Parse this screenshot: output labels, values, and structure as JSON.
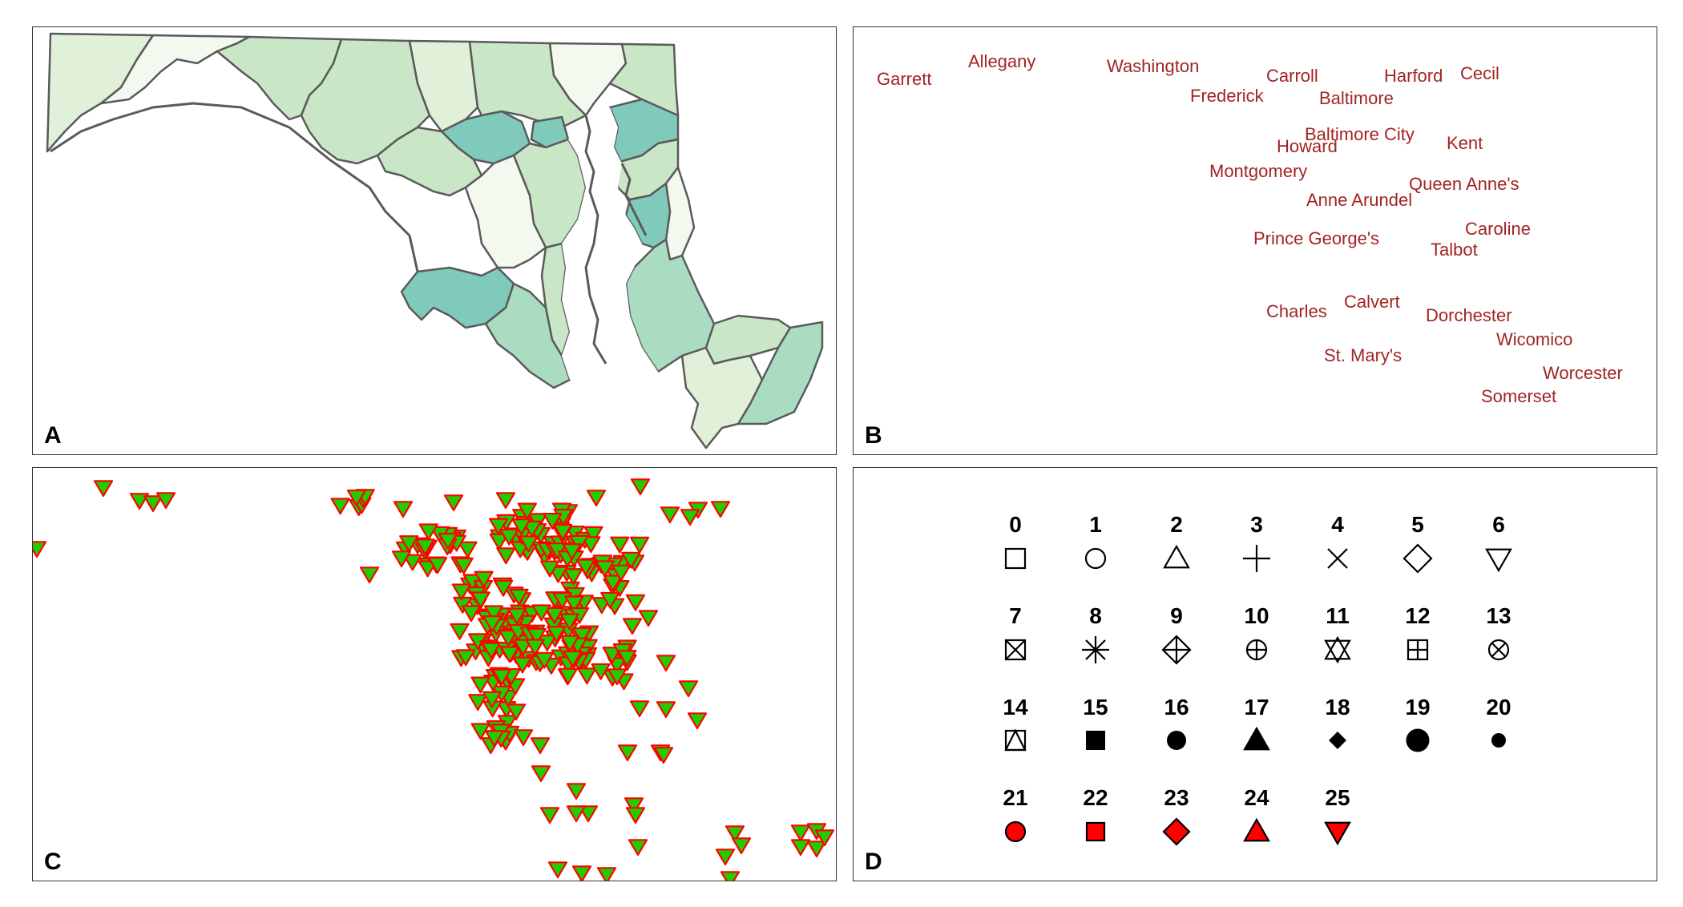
{
  "panels": {
    "a": {
      "letter": "A"
    },
    "b": {
      "letter": "B"
    },
    "c": {
      "letter": "C"
    },
    "d": {
      "letter": "D"
    }
  },
  "colors": {
    "panel_border": "#333333",
    "county_border": "#5a5a5a",
    "label_red": "#a32424",
    "marker_fill": "#22cc00",
    "marker_stroke": "#ff0000",
    "red_fill": "#ff0000",
    "fill_levels": [
      "#f3f9ee",
      "#e1f1d9",
      "#c9e7c7",
      "#a9dcc0",
      "#7fcabb"
    ]
  },
  "counties": [
    {
      "name": "Garrett"
    },
    {
      "name": "Allegany"
    },
    {
      "name": "Washington"
    },
    {
      "name": "Frederick"
    },
    {
      "name": "Carroll"
    },
    {
      "name": "Baltimore"
    },
    {
      "name": "Harford"
    },
    {
      "name": "Cecil"
    },
    {
      "name": "Baltimore City"
    },
    {
      "name": "Howard"
    },
    {
      "name": "Kent"
    },
    {
      "name": "Montgomery"
    },
    {
      "name": "Queen Anne's"
    },
    {
      "name": "Anne Arundel"
    },
    {
      "name": "Prince George's"
    },
    {
      "name": "Caroline"
    },
    {
      "name": "Talbot"
    },
    {
      "name": "Charles"
    },
    {
      "name": "Calvert"
    },
    {
      "name": "Dorchester"
    },
    {
      "name": "St. Mary's"
    },
    {
      "name": "Wicomico"
    },
    {
      "name": "Worcester"
    },
    {
      "name": "Somerset"
    }
  ],
  "pch_symbols": [
    {
      "number": "0",
      "shape": "square-open"
    },
    {
      "number": "1",
      "shape": "circle-open"
    },
    {
      "number": "2",
      "shape": "triangle-open"
    },
    {
      "number": "3",
      "shape": "plus"
    },
    {
      "number": "4",
      "shape": "cross"
    },
    {
      "number": "5",
      "shape": "diamond-open"
    },
    {
      "number": "6",
      "shape": "triangle-down-open"
    },
    {
      "number": "7",
      "shape": "square-cross"
    },
    {
      "number": "8",
      "shape": "asterisk"
    },
    {
      "number": "9",
      "shape": "diamond-plus"
    },
    {
      "number": "10",
      "shape": "circle-plus"
    },
    {
      "number": "11",
      "shape": "star-of-david"
    },
    {
      "number": "12",
      "shape": "square-plus"
    },
    {
      "number": "13",
      "shape": "circle-cross"
    },
    {
      "number": "14",
      "shape": "square-triangle"
    },
    {
      "number": "15",
      "shape": "square-filled"
    },
    {
      "number": "16",
      "shape": "circle-filled"
    },
    {
      "number": "17",
      "shape": "triangle-filled"
    },
    {
      "number": "18",
      "shape": "diamond-filled-small"
    },
    {
      "number": "19",
      "shape": "circle-filled-large"
    },
    {
      "number": "20",
      "shape": "circle-filled-small"
    },
    {
      "number": "21",
      "shape": "circle-red"
    },
    {
      "number": "22",
      "shape": "square-red"
    },
    {
      "number": "23",
      "shape": "diamond-red"
    },
    {
      "number": "24",
      "shape": "triangle-red"
    },
    {
      "number": "25",
      "shape": "triangle-down-red"
    }
  ]
}
